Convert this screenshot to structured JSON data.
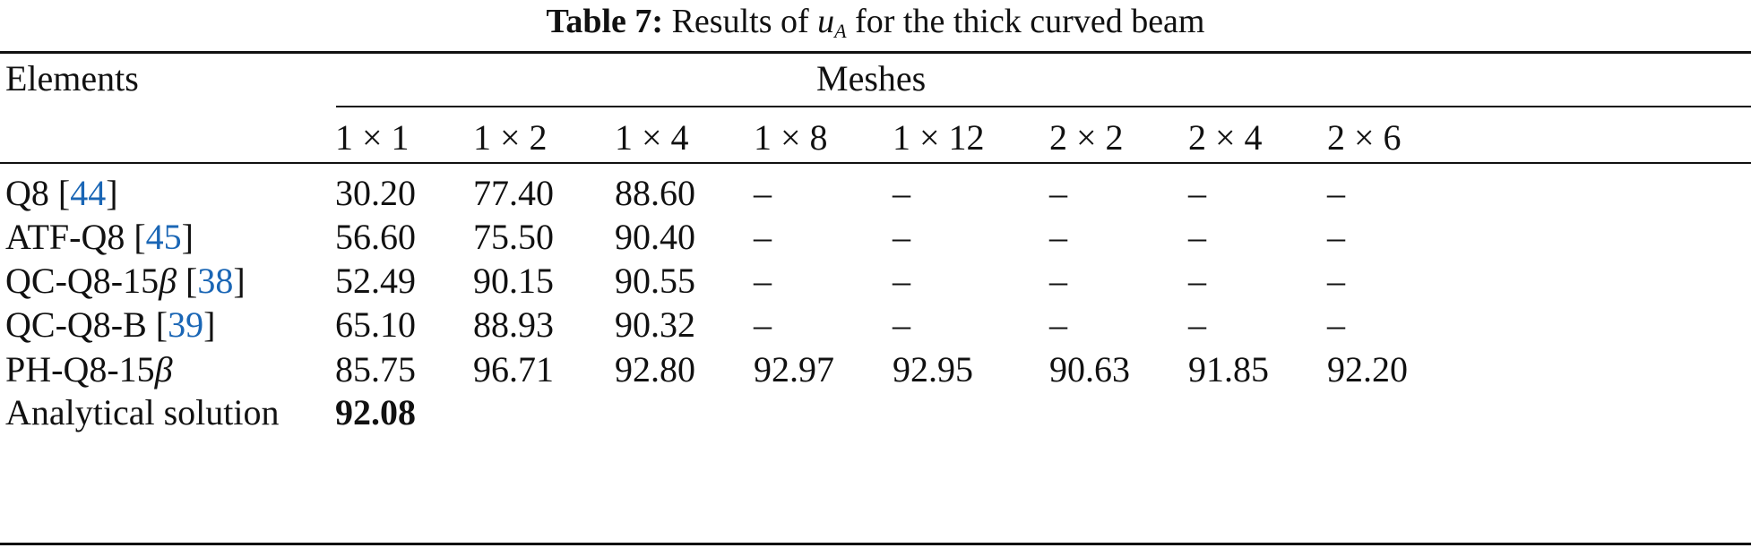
{
  "caption": {
    "label": "Table 7:",
    "text_before": "Results of",
    "symbol": "u",
    "symbol_sub": "A",
    "text_after": "for the thick curved beam"
  },
  "header": {
    "elements": "Elements",
    "meshes": "Meshes",
    "columns": [
      "1 × 1",
      "1 × 2",
      "1 × 4",
      "1 × 8",
      "1 × 12",
      "2 × 2",
      "2 × 4",
      "2 × 6"
    ]
  },
  "rows": [
    {
      "name": "Q8",
      "name_beta": "",
      "ref": "44",
      "values": [
        "30.20",
        "77.40",
        "88.60",
        "–",
        "–",
        "–",
        "–",
        "–"
      ]
    },
    {
      "name": "ATF-Q8",
      "name_beta": "",
      "ref": "45",
      "values": [
        "56.60",
        "75.50",
        "90.40",
        "–",
        "–",
        "–",
        "–",
        "–"
      ]
    },
    {
      "name": "QC-Q8-15",
      "name_beta": "β",
      "ref": "38",
      "values": [
        "52.49",
        "90.15",
        "90.55",
        "–",
        "–",
        "–",
        "–",
        "–"
      ]
    },
    {
      "name": "QC-Q8-B",
      "name_beta": "",
      "ref": "39",
      "values": [
        "65.10",
        "88.93",
        "90.32",
        "–",
        "–",
        "–",
        "–",
        "–"
      ]
    },
    {
      "name": "PH-Q8-15",
      "name_beta": "β",
      "ref": "",
      "values": [
        "85.75",
        "96.71",
        "92.80",
        "92.97",
        "92.95",
        "90.63",
        "91.85",
        "92.20"
      ]
    }
  ],
  "analytical": {
    "name": "Analytical solution",
    "value": "92.08"
  }
}
